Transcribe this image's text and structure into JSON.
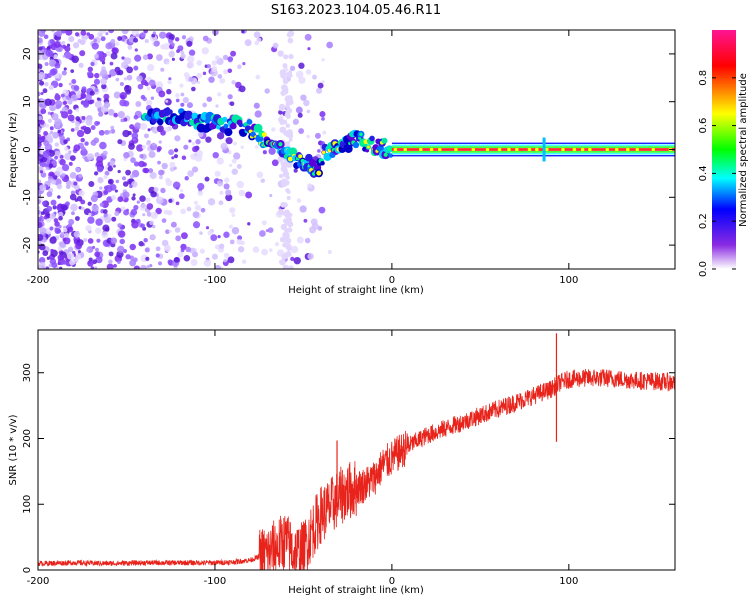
{
  "title": "S163.2023.104.05.46.R11",
  "chart_data": [
    {
      "type": "heatmap",
      "xlabel": "Height of straight line (km)",
      "ylabel": "Frequency (Hz)",
      "xlim": [
        -200,
        160
      ],
      "ylim": [
        -25,
        25
      ],
      "xticks": [
        "-200",
        "-100",
        "0",
        "100"
      ],
      "yticks": [
        "-20",
        "-10",
        "0",
        "10",
        "20"
      ],
      "colorbar": {
        "label": "Normalized spectral amplitude",
        "range": [
          0,
          1
        ],
        "ticks": [
          "0.0",
          "0.2",
          "0.4",
          "0.6",
          "0.8"
        ],
        "colors": [
          "#ffffff",
          "#8a2be2",
          "#0000ff",
          "#00ffff",
          "#00ff00",
          "#ffff00",
          "#ff0000",
          "#ff1493"
        ]
      },
      "signal_track": [
        {
          "x": -140,
          "y": 6
        },
        {
          "x": -125,
          "y": 7
        },
        {
          "x": -110,
          "y": 6
        },
        {
          "x": -95,
          "y": 5
        },
        {
          "x": -85,
          "y": 5
        },
        {
          "x": -78,
          "y": 4
        },
        {
          "x": -72,
          "y": 2
        },
        {
          "x": -65,
          "y": 0
        },
        {
          "x": -55,
          "y": -2
        },
        {
          "x": -48,
          "y": -3
        },
        {
          "x": -42,
          "y": -4
        },
        {
          "x": -38,
          "y": -1
        },
        {
          "x": -30,
          "y": 1
        },
        {
          "x": -20,
          "y": 2
        },
        {
          "x": -12,
          "y": 1
        },
        {
          "x": 0,
          "y": 0
        },
        {
          "x": 160,
          "y": 0
        }
      ]
    },
    {
      "type": "line",
      "xlabel": "Height of straight line (km)",
      "ylabel": "SNR (10 * v/v)",
      "xlim": [
        -200,
        160
      ],
      "ylim": [
        0,
        365
      ],
      "xticks": [
        "-200",
        "-100",
        "0",
        "100"
      ],
      "yticks": [
        "0",
        "100",
        "200",
        "300"
      ],
      "series": [
        {
          "color": "#e8231b",
          "x": [
            -200,
            -180,
            -160,
            -140,
            -120,
            -100,
            -90,
            -80,
            -70,
            -65,
            -60,
            -55,
            -50,
            -45,
            -40,
            -35,
            -30,
            -25,
            -20,
            -15,
            -10,
            -5,
            0,
            10,
            20,
            30,
            40,
            50,
            60,
            70,
            80,
            90,
            95,
            100,
            110,
            120,
            130,
            140,
            150,
            160
          ],
          "values": [
            10,
            11,
            10,
            11,
            11,
            11,
            12,
            15,
            25,
            35,
            45,
            25,
            30,
            60,
            85,
            95,
            110,
            120,
            125,
            130,
            140,
            160,
            170,
            190,
            205,
            215,
            225,
            235,
            245,
            255,
            265,
            275,
            285,
            290,
            292,
            292,
            290,
            288,
            287,
            285
          ]
        }
      ],
      "annotations": [
        {
          "x": -31,
          "y": 197
        },
        {
          "x": 93,
          "y": 360
        },
        {
          "x": 93,
          "y": 195
        }
      ]
    }
  ]
}
